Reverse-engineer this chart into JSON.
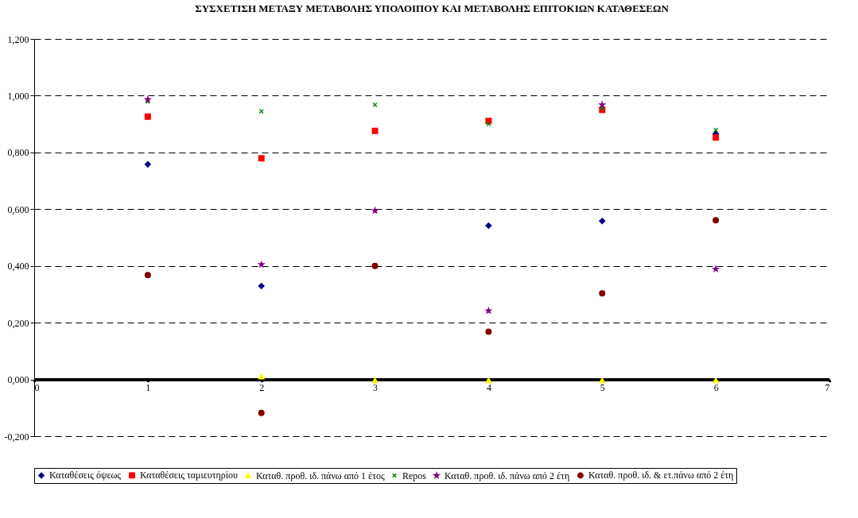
{
  "chart_data": {
    "type": "scatter",
    "title": "ΣΥΣΧΕΤΙΣΗ ΜΕΤΑΞΥ ΜΕΤΑΒΟΛΗΣ ΥΠΟΛΟΙΠΟΥ ΚΑΙ ΜΕΤΑΒΟΛΗΣ ΕΠΙΤΟΚΙΩΝ ΚΑΤΑΘΕΣΕΩΝ",
    "x": [
      1,
      2,
      3,
      4,
      5,
      6
    ],
    "series": [
      {
        "name": "Καταθέσεις όψεως",
        "color": "#000080",
        "marker": "diamond",
        "values": [
          0.758,
          0.329,
          null,
          0.542,
          0.558,
          0.866
        ]
      },
      {
        "name": "Καταθέσεις ταμιευτηρίου",
        "color": "#ff0000",
        "marker": "square",
        "values": [
          0.926,
          0.779,
          0.876,
          0.911,
          0.95,
          0.853
        ]
      },
      {
        "name": "Καταθ. προθ. ιδ. πάνω από 1 έτος",
        "color": "#ffff00",
        "marker": "triangle",
        "values": [
          null,
          0.01,
          -0.003,
          -0.003,
          -0.003,
          -0.003
        ]
      },
      {
        "name": "Repos",
        "color": "#008000",
        "marker": "cross",
        "values": [
          0.98,
          0.945,
          0.968,
          0.9,
          0.955,
          0.879
        ]
      },
      {
        "name": "Καταθ. προθ. ιδ. πάνω από 2 έτη",
        "color": "#800080",
        "marker": "star",
        "values": [
          0.987,
          0.405,
          0.595,
          0.242,
          0.968,
          0.389
        ]
      },
      {
        "name": "Καταθ. προθ. ιδ. & ετ.πάνω από 2 έτη",
        "color": "#800000",
        "marker": "circle",
        "values": [
          0.368,
          -0.118,
          0.4,
          0.168,
          0.303,
          0.561
        ]
      }
    ],
    "xlim": [
      0,
      7
    ],
    "xticks": [
      0,
      1,
      2,
      3,
      4,
      5,
      6,
      7
    ],
    "ylim": [
      -0.2,
      1.2
    ],
    "yticks": [
      {
        "value": -0.2,
        "label": "-0,200"
      },
      {
        "value": 0,
        "label": "0,000"
      },
      {
        "value": 0.2,
        "label": "0,200"
      },
      {
        "value": 0.4,
        "label": "0,400"
      },
      {
        "value": 0.6,
        "label": "0,600"
      },
      {
        "value": 0.8,
        "label": "0,800"
      },
      {
        "value": 1.0,
        "label": "1,000"
      },
      {
        "value": 1.2,
        "label": "1,200"
      }
    ],
    "grid": "y",
    "legend": "bottom"
  }
}
